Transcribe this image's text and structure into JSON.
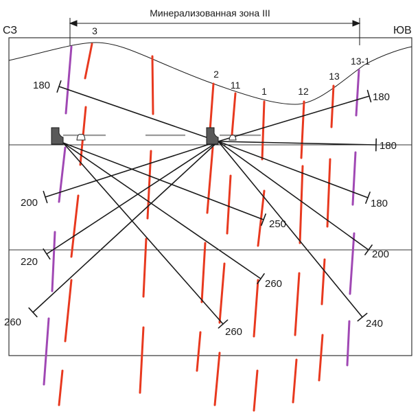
{
  "title": "Минерализованная зона III",
  "corner_left": "СЗ",
  "corner_right": "ЮВ",
  "colors": {
    "vein_red": "#e8391f",
    "vein_purple": "#a048b4",
    "line": "#1a1a1a",
    "frame": "#333333",
    "gallery": "#9a9a9a",
    "station": "#595959"
  },
  "vein_labels": [
    "3",
    "2",
    "11",
    "1",
    "12",
    "13",
    "13-1"
  ],
  "borehole_labels": [
    "180",
    "180",
    "180",
    "200",
    "180",
    "250",
    "220",
    "200",
    "260",
    "240",
    "260",
    "260"
  ]
}
